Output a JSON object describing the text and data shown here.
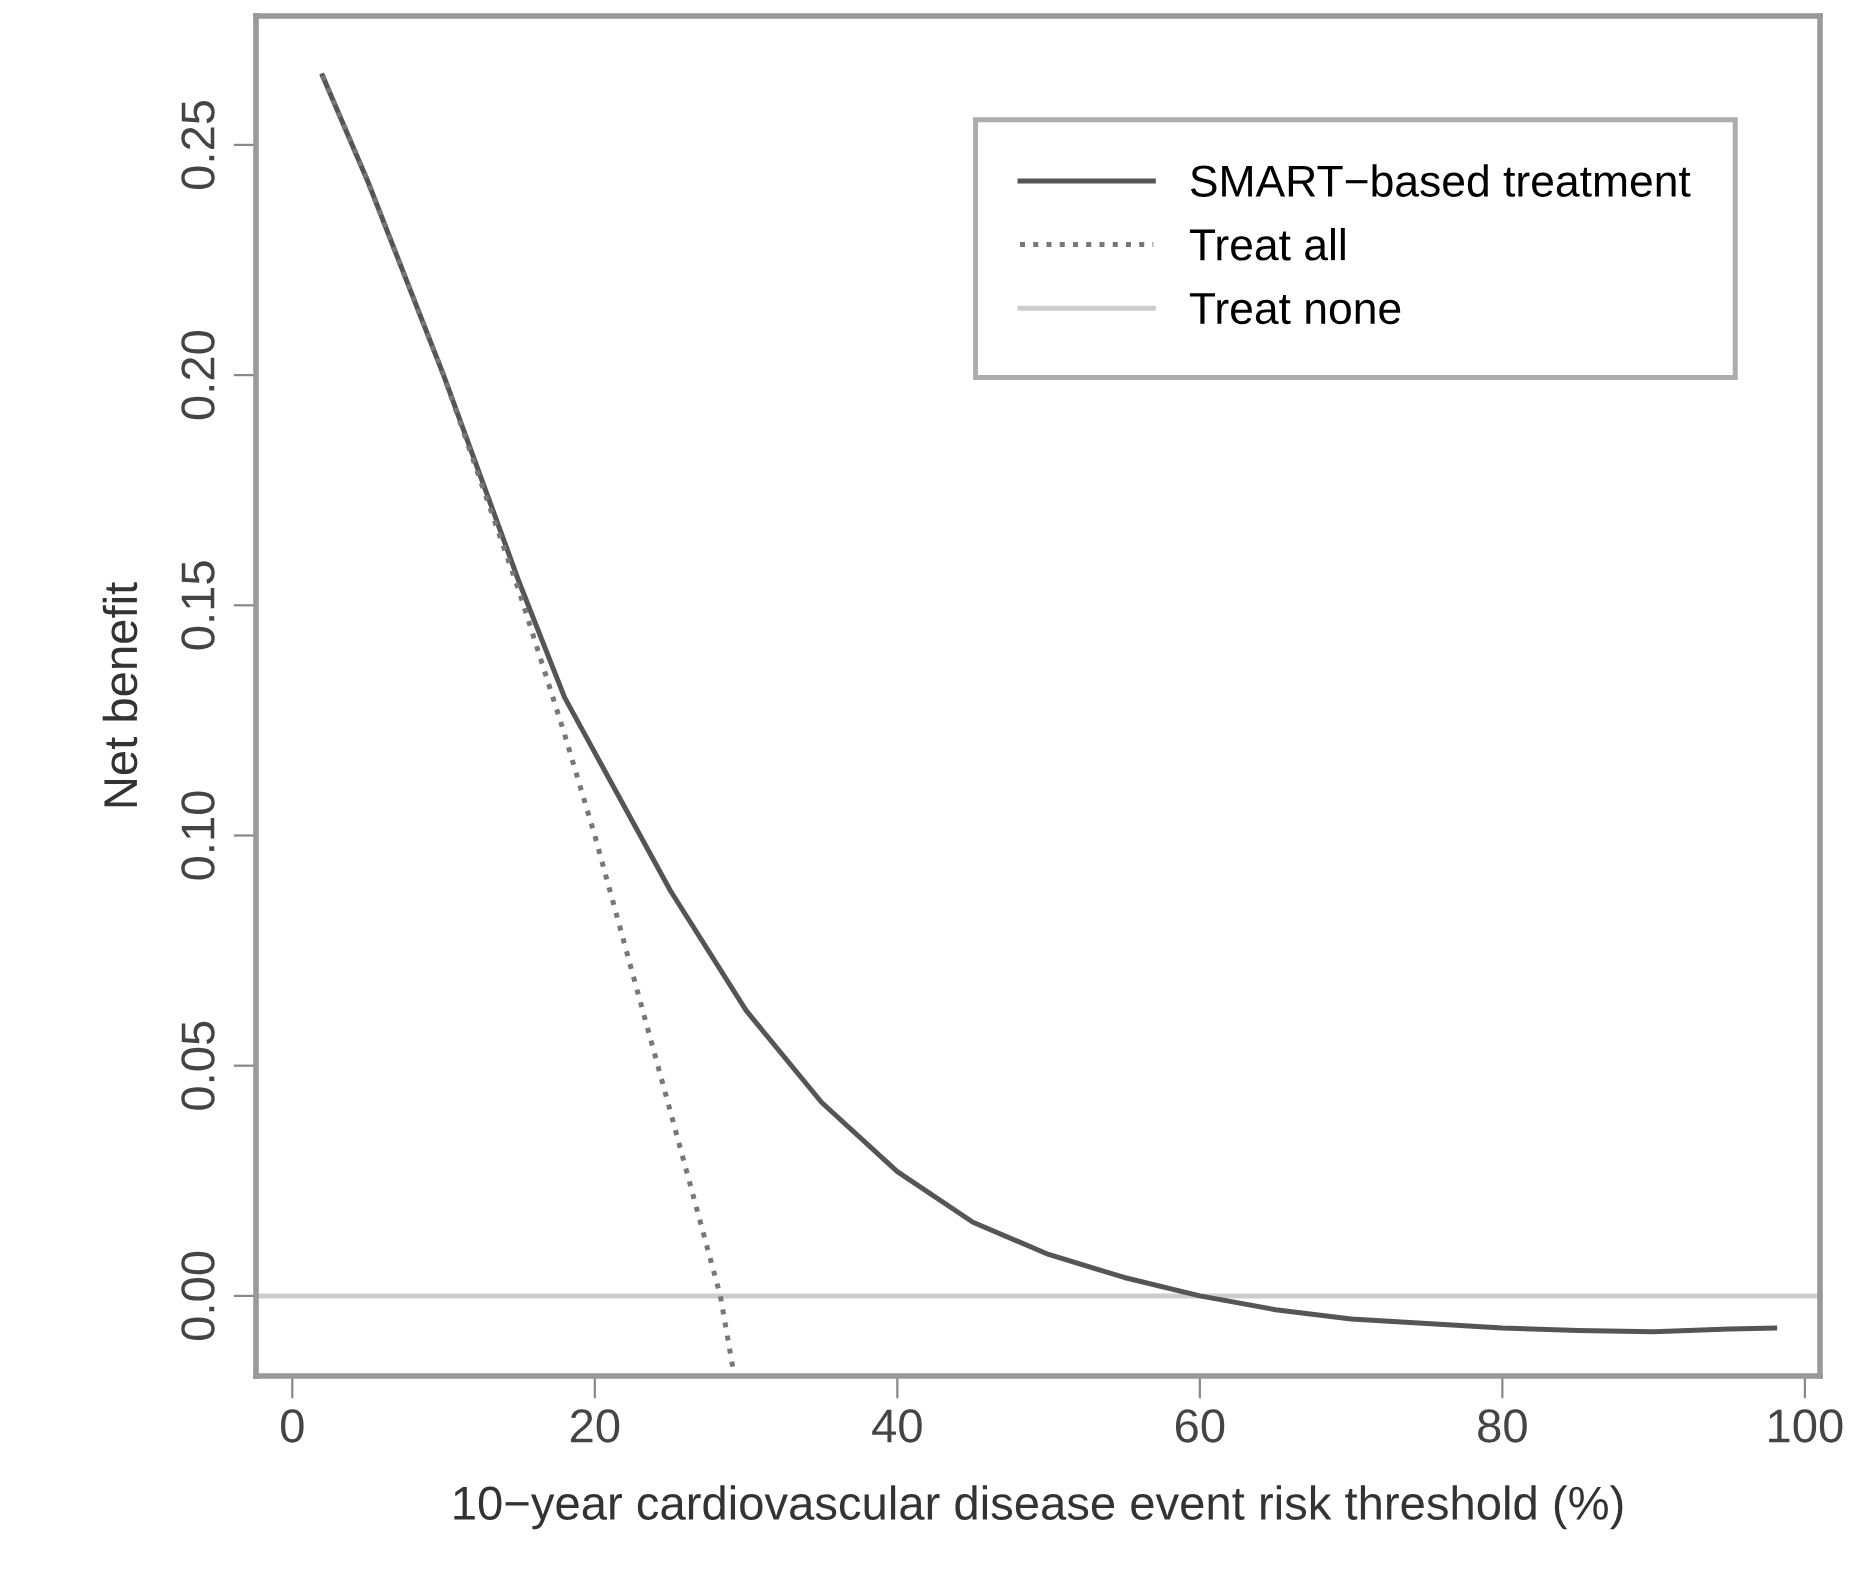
{
  "chart_data": {
    "type": "line",
    "xlabel": "10−year cardiovascular disease event risk threshold (%)",
    "ylabel": "Net benefit",
    "series": [
      {
        "name": "SMART−based treatment",
        "color": "#555555",
        "line_style": "solid",
        "x": [
          2,
          5,
          10,
          15,
          18,
          20,
          25,
          30,
          35,
          40,
          45,
          50,
          55,
          60,
          65,
          70,
          75,
          80,
          85,
          90,
          95,
          98
        ],
        "values": [
          0.265,
          0.242,
          0.2,
          0.155,
          0.13,
          0.118,
          0.088,
          0.062,
          0.042,
          0.027,
          0.016,
          0.009,
          0.004,
          0.0,
          -0.003,
          -0.005,
          -0.006,
          -0.007,
          -0.0075,
          -0.0078,
          -0.0072,
          -0.007
        ]
      },
      {
        "name": "Treat all",
        "color": "#777777",
        "line_style": "dotted",
        "x": [
          2,
          5,
          10,
          15,
          18,
          20,
          25,
          28.3,
          29.2
        ],
        "values": [
          0.265,
          0.242,
          0.2,
          0.153,
          0.122,
          0.1,
          0.04,
          0.0,
          -0.017
        ]
      }
    ],
    "ref_lines": [
      {
        "axis": "y",
        "value": 0,
        "label": "Treat none",
        "color": "#cccccc",
        "line_style": "solid"
      }
    ],
    "xlim": [
      -2.4,
      101
    ],
    "ylim": [
      -0.0174,
      0.278
    ],
    "xticks": [
      0,
      20,
      40,
      60,
      80,
      100
    ],
    "yticks": [
      {
        "value": 0,
        "label": "0.00"
      },
      0.05,
      {
        "value": 0.1,
        "label": "0.10"
      },
      0.15,
      {
        "value": 0.2,
        "label": "0.20"
      },
      0.25
    ],
    "grid": false,
    "legend": "top right"
  }
}
